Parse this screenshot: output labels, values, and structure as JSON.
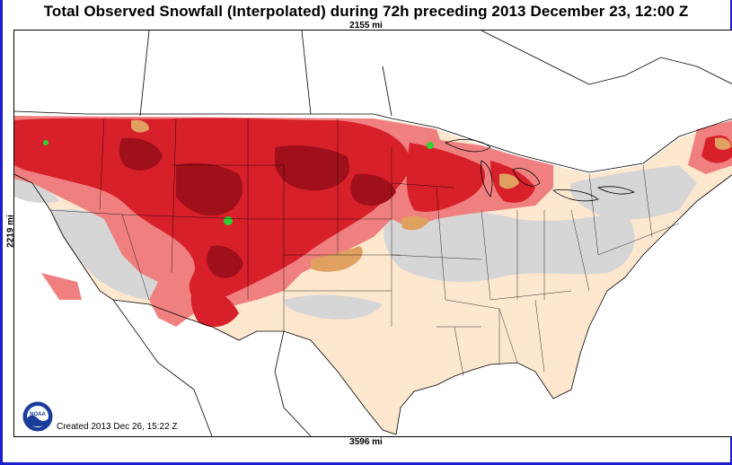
{
  "title": "Total Observed Snowfall (Interpolated) during 72h preceding 2013 December 23, 12:00 Z",
  "scale": {
    "top": "2155 mi",
    "bottom": "3596 mi",
    "left": "2219 mi"
  },
  "footer": {
    "created": "Created 2013 Dec 26, 15:22 Z",
    "logo": "noaa-logo",
    "logo_text": "NOAA"
  },
  "colors": {
    "frame": "#1c1cd0",
    "water": "#ffffff",
    "no_snow_land": "#fde7cf",
    "trace": "#d6d6d6",
    "light": "#f08080",
    "moderate": "#d8202a",
    "heavy": "#a0101a",
    "very_heavy": "#e0a060",
    "extreme": "#30d030"
  }
}
